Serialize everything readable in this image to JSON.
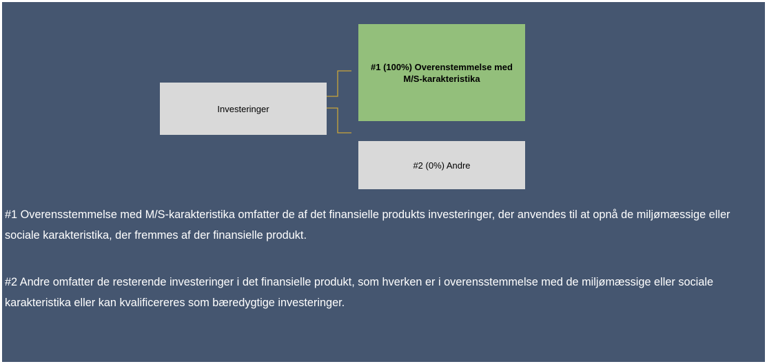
{
  "nodes": [
    {
      "label": "Investeringer"
    },
    {
      "label": "#1 (100%) Overenstemmelse med M/S-karakteristika"
    },
    {
      "label": "#2 (0%) Andre"
    }
  ],
  "paragraphs": [
    "#1 Overensstemmelse med M/S-karakteristika omfatter de af det finansielle produkts investeringer, der anvendes til at opnå de miljømæssige eller sociale karakteristika, der fremmes af der finansielle produkt.",
    "#2 Andre omfatter de resterende investeringer i det finansielle produkt, som hverken er i overensstemmelse med de miljømæssige eller sociale karakteristika eller kan kvalificereres som bæredygtige investeringer."
  ]
}
